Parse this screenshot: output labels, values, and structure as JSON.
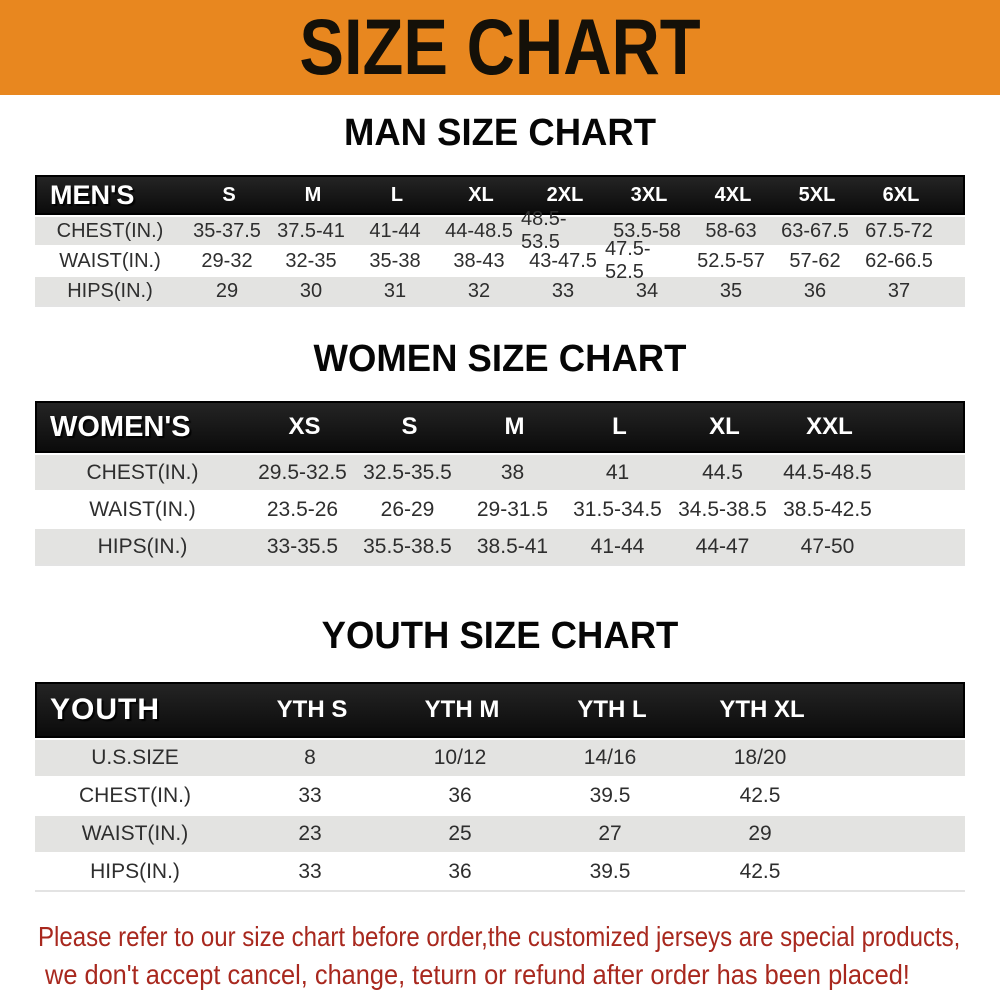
{
  "banner": {
    "title": "SIZE CHART"
  },
  "colors": {
    "banner_bg": "#E8871F",
    "header_bg": "#141414",
    "row_alt_bg": "#E3E3E1",
    "footnote_red": "#A8281E"
  },
  "sections": [
    {
      "title": "MAN SIZE CHART",
      "header_label": "MEN'S",
      "columns": [
        "S",
        "M",
        "L",
        "XL",
        "2XL",
        "3XL",
        "4XL",
        "5XL",
        "6XL"
      ],
      "rows": [
        {
          "label": "CHEST(IN.)",
          "values": [
            "35-37.5",
            "37.5-41",
            "41-44",
            "44-48.5",
            "48.5-53.5",
            "53.5-58",
            "58-63",
            "63-67.5",
            "67.5-72"
          ]
        },
        {
          "label": "WAIST(IN.)",
          "values": [
            "29-32",
            "32-35",
            "35-38",
            "38-43",
            "43-47.5",
            "47.5-52.5",
            "52.5-57",
            "57-62",
            "62-66.5"
          ]
        },
        {
          "label": "HIPS(IN.)",
          "values": [
            "29",
            "30",
            "31",
            "32",
            "33",
            "34",
            "35",
            "36",
            "37"
          ]
        }
      ]
    },
    {
      "title": "WOMEN SIZE CHART",
      "header_label": "WOMEN'S",
      "columns": [
        "XS",
        "S",
        "M",
        "L",
        "XL",
        "XXL"
      ],
      "rows": [
        {
          "label": "CHEST(IN.)",
          "values": [
            "29.5-32.5",
            "32.5-35.5",
            "38",
            "41",
            "44.5",
            "44.5-48.5"
          ]
        },
        {
          "label": "WAIST(IN.)",
          "values": [
            "23.5-26",
            "26-29",
            "29-31.5",
            "31.5-34.5",
            "34.5-38.5",
            "38.5-42.5"
          ]
        },
        {
          "label": "HIPS(IN.)",
          "values": [
            "33-35.5",
            "35.5-38.5",
            "38.5-41",
            "41-44",
            "44-47",
            "47-50"
          ]
        }
      ]
    },
    {
      "title": "YOUTH SIZE CHART",
      "header_label": "YOUTH",
      "columns": [
        "YTH S",
        "YTH M",
        "YTH L",
        "YTH XL"
      ],
      "rows": [
        {
          "label": "U.S.SIZE",
          "values": [
            "8",
            "10/12",
            "14/16",
            "18/20"
          ]
        },
        {
          "label": "CHEST(IN.)",
          "values": [
            "33",
            "36",
            "39.5",
            "42.5"
          ]
        },
        {
          "label": "WAIST(IN.)",
          "values": [
            "23",
            "25",
            "27",
            "29"
          ]
        },
        {
          "label": "HIPS(IN.)",
          "values": [
            "33",
            "36",
            "39.5",
            "42.5"
          ]
        }
      ]
    }
  ],
  "footnote": {
    "line1": "Please refer to our size chart before order,the customized jerseys are special products,",
    "line2": "we don't accept cancel, change, teturn or refund after order has been placed!"
  }
}
